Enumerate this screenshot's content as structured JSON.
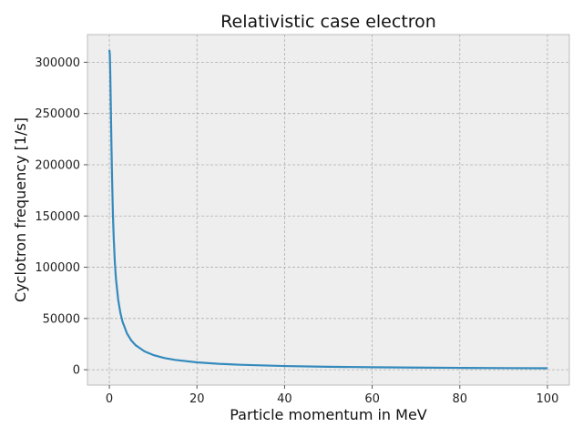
{
  "chart_data": {
    "type": "line",
    "title": "Relativistic case electron",
    "xlabel": "Particle momentum in MeV",
    "ylabel": "Cyclotron frequency [1/s]",
    "xlim": [
      -5,
      105
    ],
    "ylim": [
      -15000,
      327000
    ],
    "xticks": [
      0,
      20,
      40,
      60,
      80,
      100
    ],
    "yticks": [
      0,
      50000,
      100000,
      150000,
      200000,
      250000,
      300000
    ],
    "grid": true,
    "series": [
      {
        "color": "#348abd",
        "x": [
          0,
          0.1,
          0.2,
          0.3,
          0.4,
          0.5,
          0.6,
          0.8,
          1,
          1.25,
          1.5,
          2,
          2.5,
          3,
          4,
          5,
          6,
          8,
          10,
          12.5,
          15,
          20,
          25,
          30,
          40,
          50,
          60,
          70,
          80,
          90,
          100
        ],
        "y": [
          312000,
          308000,
          291000,
          266000,
          240000,
          214000,
          191000,
          154000,
          128000,
          105000,
          89000,
          68800,
          55900,
          47000,
          35600,
          28600,
          23900,
          18000,
          14400,
          11500,
          9610,
          7220,
          5780,
          4820,
          3620,
          2900,
          2420,
          2070,
          1810,
          1610,
          1450
        ]
      }
    ]
  },
  "colors": {
    "plot_background": "#eeeeee",
    "grid": "#b0b0b0",
    "line": "#348abd"
  }
}
